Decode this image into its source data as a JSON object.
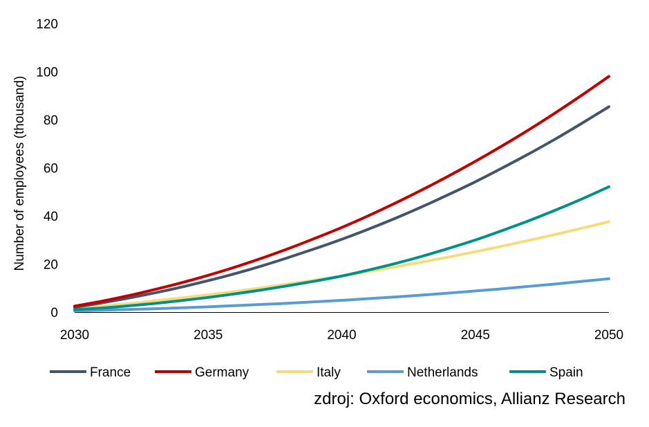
{
  "chart_data": {
    "type": "line",
    "title": "",
    "xlabel": "",
    "ylabel": "Number of employees (thousand)",
    "x": [
      2030,
      2031,
      2032,
      2033,
      2034,
      2035,
      2036,
      2037,
      2038,
      2039,
      2040,
      2041,
      2042,
      2043,
      2044,
      2045,
      2046,
      2047,
      2048,
      2049,
      2050
    ],
    "xticks": [
      "2030",
      "2035",
      "2040",
      "2045",
      "2050"
    ],
    "yticks": [
      "0",
      "20",
      "40",
      "60",
      "80",
      "100",
      "120"
    ],
    "xlim": [
      2030,
      2050
    ],
    "ylim": [
      0,
      120
    ],
    "grid": false,
    "legend_position": "bottom",
    "series": [
      {
        "name": "France",
        "color": "#44546a",
        "values": [
          2.0,
          3.8,
          5.8,
          8.0,
          10.4,
          13.1,
          16.0,
          19.2,
          22.7,
          26.4,
          30.3,
          34.5,
          39.0,
          43.8,
          48.9,
          54.2,
          59.9,
          65.8,
          72.0,
          78.6,
          85.4
        ]
      },
      {
        "name": "Germany",
        "color": "#c00000",
        "values": [
          2.5,
          4.5,
          6.8,
          9.4,
          12.2,
          15.3,
          18.7,
          22.4,
          26.4,
          30.7,
          35.2,
          40.1,
          45.3,
          50.8,
          56.6,
          62.7,
          69.1,
          75.8,
          82.9,
          90.3,
          98.0
        ]
      },
      {
        "name": "Italy",
        "color": "#f5dc7a",
        "values": [
          1.5,
          2.5,
          3.5,
          4.7,
          5.9,
          7.2,
          8.6,
          10.1,
          11.7,
          13.3,
          15.0,
          16.9,
          18.8,
          20.8,
          22.9,
          25.1,
          27.4,
          29.8,
          32.3,
          34.9,
          37.6
        ]
      },
      {
        "name": "Netherlands",
        "color": "#5b9bd5",
        "values": [
          0.5,
          0.8,
          1.1,
          1.4,
          1.8,
          2.2,
          2.7,
          3.2,
          3.7,
          4.3,
          4.9,
          5.6,
          6.3,
          7.1,
          7.9,
          8.8,
          9.7,
          10.7,
          11.7,
          12.8,
          13.9
        ]
      },
      {
        "name": "Spain",
        "color": "#00908a",
        "values": [
          1.0,
          1.7,
          2.6,
          3.6,
          4.8,
          6.1,
          7.6,
          9.2,
          11.0,
          12.9,
          15.0,
          17.5,
          20.2,
          23.2,
          26.5,
          30.0,
          33.9,
          38.0,
          42.4,
          47.1,
          52.1
        ]
      }
    ]
  },
  "source_note": "zdroj: Oxford economics, Allianz Research"
}
